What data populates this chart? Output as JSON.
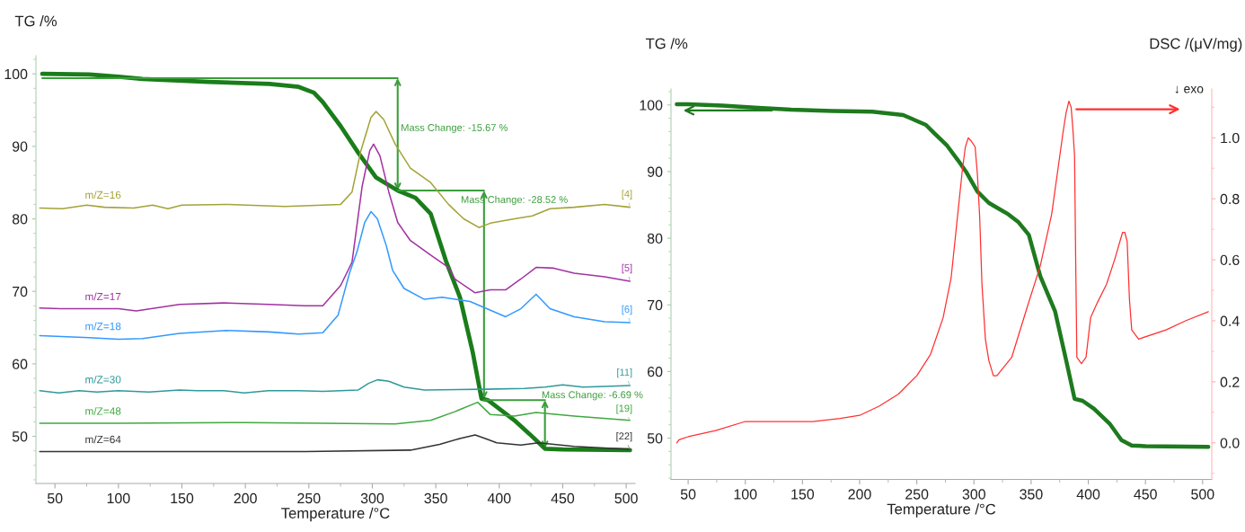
{
  "chart_data": [
    {
      "type": "line",
      "xlabel": "Temperature /°C",
      "ylabel": "TG /%",
      "xlim": [
        35,
        507
      ],
      "ylim": [
        43.5,
        102.5
      ],
      "xticks": [
        50,
        {
          "value": 75,
          "label": null
        },
        100,
        {
          "value": 125,
          "label": null
        },
        150,
        {
          "value": 175,
          "label": null
        },
        200,
        {
          "value": 225,
          "label": null
        },
        250,
        {
          "value": 275,
          "label": null
        },
        300,
        {
          "value": 325,
          "label": null
        },
        350,
        {
          "value": 375,
          "label": null
        },
        400,
        {
          "value": 425,
          "label": null
        },
        450,
        {
          "value": 475,
          "label": null
        },
        500
      ],
      "yticks": [
        {
          "value": 44,
          "label": null
        },
        {
          "value": 46,
          "label": null
        },
        {
          "value": 48,
          "label": null
        },
        50,
        {
          "value": 52,
          "label": null
        },
        {
          "value": 54,
          "label": null
        },
        {
          "value": 56,
          "label": null
        },
        {
          "value": 58,
          "label": null
        },
        60,
        {
          "value": 62,
          "label": null
        },
        {
          "value": 64,
          "label": null
        },
        {
          "value": 66,
          "label": null
        },
        {
          "value": 68,
          "label": null
        },
        70,
        {
          "value": 72,
          "label": null
        },
        {
          "value": 74,
          "label": null
        },
        {
          "value": 76,
          "label": null
        },
        {
          "value": 78,
          "label": null
        },
        80,
        {
          "value": 82,
          "label": null
        },
        {
          "value": 84,
          "label": null
        },
        {
          "value": 86,
          "label": null
        },
        {
          "value": 88,
          "label": null
        },
        90,
        {
          "value": 92,
          "label": null
        },
        {
          "value": 94,
          "label": null
        },
        {
          "value": 96,
          "label": null
        },
        {
          "value": 98,
          "label": null
        },
        100,
        {
          "value": 102,
          "label": null
        }
      ],
      "series": [
        {
          "color": "#1a7d1a",
          "x": [
            40,
            77,
            100,
            119,
            171,
            219,
            242,
            254,
            261,
            275,
            289,
            303,
            320,
            334,
            346,
            358,
            369,
            379,
            386,
            391,
            400,
            412,
            424,
            436,
            450,
            503
          ],
          "values": [
            100,
            99.9,
            99.6,
            99.3,
            98.9,
            98.6,
            98.2,
            97.4,
            96.1,
            92.8,
            89.1,
            85.7,
            83.9,
            82.9,
            80.7,
            74.2,
            69.2,
            61.7,
            55.2,
            55.0,
            53.8,
            52.2,
            50.3,
            48.3,
            48.2,
            48.1
          ]
        },
        {
          "color": "#3a9e3a",
          "x": [
            40,
            320
          ],
          "values": [
            99.4,
            99.4
          ]
        },
        {
          "color": "#3a9e3a",
          "x": [
            320,
            388
          ],
          "values": [
            83.9,
            83.9
          ]
        },
        {
          "color": "#3a9e3a",
          "x": [
            388,
            436
          ],
          "values": [
            55.0,
            55.0
          ]
        },
        {
          "name": "m/Z=16",
          "color": "#a3a33a",
          "x": [
            38,
            56,
            75,
            89,
            112,
            127,
            139,
            150,
            185,
            231,
            261,
            275,
            284,
            291,
            299,
            303,
            309,
            318,
            330,
            346,
            360,
            372,
            384,
            393,
            412,
            426,
            440,
            459,
            483,
            503
          ],
          "values": [
            81.5,
            81.4,
            81.9,
            81.6,
            81.5,
            81.9,
            81.4,
            81.9,
            82.0,
            81.7,
            81.9,
            82.0,
            83.7,
            89.4,
            94.0,
            94.8,
            93.7,
            90.3,
            87.0,
            85.0,
            82.0,
            80.0,
            78.8,
            79.4,
            80.0,
            80.4,
            81.4,
            81.6,
            82.0,
            81.6
          ]
        },
        {
          "name": "m/Z=17",
          "color": "#a232a2",
          "x": [
            38,
            54,
            100,
            114,
            148,
            183,
            219,
            247,
            261,
            275,
            284,
            292,
            298,
            301,
            306,
            313,
            320,
            330,
            346,
            360,
            365,
            381,
            393,
            405,
            417,
            429,
            443,
            459,
            483,
            503
          ],
          "values": [
            67.7,
            67.6,
            67.6,
            67.3,
            68.2,
            68.4,
            68.2,
            68.0,
            68.0,
            70.8,
            74.0,
            84.5,
            89.4,
            90.3,
            88.7,
            83.7,
            79.5,
            77.0,
            75.0,
            73.3,
            71.7,
            69.8,
            70.2,
            70.2,
            71.7,
            73.3,
            73.2,
            72.5,
            72.0,
            71.4
          ]
        },
        {
          "name": "m/Z=18",
          "color": "#3399ff",
          "x": [
            38,
            77,
            100,
            119,
            148,
            185,
            219,
            242,
            261,
            273,
            282,
            288,
            294,
            299,
            304,
            311,
            316,
            325,
            341,
            355,
            377,
            389,
            405,
            417,
            429,
            440,
            459,
            483,
            503
          ],
          "values": [
            63.9,
            63.6,
            63.4,
            63.5,
            64.2,
            64.6,
            64.4,
            64.1,
            64.3,
            66.7,
            72.5,
            75.5,
            79.5,
            81.0,
            80.0,
            76.3,
            72.9,
            70.4,
            68.9,
            69.2,
            68.6,
            67.7,
            66.5,
            67.6,
            69.6,
            67.6,
            66.5,
            65.8,
            65.7
          ]
        },
        {
          "name": "m/Z=30",
          "color": "#2f9a9a",
          "x": [
            38,
            53,
            69,
            83,
            100,
            124,
            148,
            162,
            183,
            199,
            218,
            242,
            261,
            289,
            297,
            304,
            313,
            325,
            341,
            389,
            420,
            436,
            450,
            466,
            483,
            503
          ],
          "values": [
            56.3,
            56.0,
            56.3,
            56.1,
            56.3,
            56.1,
            56.4,
            56.3,
            56.3,
            56.0,
            56.3,
            56.3,
            56.2,
            56.4,
            57.3,
            57.8,
            57.6,
            56.8,
            56.4,
            56.5,
            56.6,
            56.8,
            57.1,
            56.8,
            56.9,
            57.0
          ]
        },
        {
          "name": "m/Z=48",
          "color": "#40a840",
          "x": [
            38,
            100,
            200,
            261,
            318,
            346,
            365,
            383,
            393,
            412,
            429,
            459,
            503
          ],
          "values": [
            51.8,
            51.8,
            51.9,
            51.8,
            51.7,
            52.2,
            53.4,
            54.7,
            53.0,
            52.8,
            53.3,
            52.8,
            52.2
          ]
        },
        {
          "name": "m/Z=64",
          "color": "#333333",
          "x": [
            38,
            247,
            330,
            353,
            369,
            381,
            389,
            398,
            417,
            431,
            459,
            503
          ],
          "values": [
            47.9,
            47.9,
            48.1,
            48.9,
            49.7,
            50.2,
            49.7,
            49.1,
            48.8,
            49.1,
            48.6,
            48.2
          ]
        }
      ],
      "annotations": [
        "Mass Change: -15.67 %",
        {
          "text": "Mass Change: -28.52 %",
          "x": 388,
          "y": 55.0
        },
        {
          "text": "Mass Change: -6.69 %",
          "x": 436,
          "y": 48.3
        },
        {
          "text": "[4]",
          "x": 503,
          "y": 81.6
        },
        {
          "text": "[5]",
          "x": 503,
          "y": 71.4
        },
        {
          "text": "[6]",
          "x": 503,
          "y": 65.7
        },
        {
          "text": "[11]",
          "x": 503,
          "y": 57.0
        },
        {
          "text": "[19]",
          "x": 503,
          "y": 52.2
        },
        {
          "text": "[22]",
          "x": 503,
          "y": 48.2
        }
      ]
    },
    {
      "type": "line",
      "xlabel": "Temperature /°C",
      "ylabel": "TG /%",
      "y2label": "DSC /(μV/mg)",
      "xlim": [
        35,
        508
      ],
      "ylim": [
        43.8,
        102.4
      ],
      "y2lim": [
        -0.12,
        1.16
      ],
      "xticks": [
        50,
        {
          "value": 75,
          "label": null
        },
        100,
        {
          "value": 125,
          "label": null
        },
        150,
        {
          "value": 175,
          "label": null
        },
        200,
        {
          "value": 225,
          "label": null
        },
        250,
        {
          "value": 275,
          "label": null
        },
        300,
        {
          "value": 325,
          "label": null
        },
        350,
        {
          "value": 375,
          "label": null
        },
        400,
        {
          "value": 425,
          "label": null
        },
        450,
        {
          "value": 475,
          "label": null
        },
        500
      ],
      "yticks": [
        {
          "value": 44,
          "label": null
        },
        {
          "value": 46,
          "label": null
        },
        {
          "value": 48,
          "label": null
        },
        50,
        {
          "value": 52,
          "label": null
        },
        {
          "value": 54,
          "label": null
        },
        {
          "value": 56,
          "label": null
        },
        {
          "value": 58,
          "label": null
        },
        60,
        {
          "value": 62,
          "label": null
        },
        {
          "value": 64,
          "label": null
        },
        {
          "value": 66,
          "label": null
        },
        {
          "value": 68,
          "label": null
        },
        70,
        {
          "value": 72,
          "label": null
        },
        {
          "value": 74,
          "label": null
        },
        {
          "value": 76,
          "label": null
        },
        {
          "value": 78,
          "label": null
        },
        80,
        {
          "value": 82,
          "label": null
        },
        {
          "value": 84,
          "label": null
        },
        {
          "value": 86,
          "label": null
        },
        {
          "value": 88,
          "label": null
        },
        90,
        {
          "value": 92,
          "label": null
        },
        {
          "value": 94,
          "label": null
        },
        {
          "value": 96,
          "label": null
        },
        {
          "value": 98,
          "label": null
        },
        100,
        {
          "value": 102,
          "label": null
        }
      ],
      "y2ticks": [
        {
          "value": -0.1,
          "label": null
        },
        {
          "value": 0,
          "label": "0.0"
        },
        {
          "value": 0.1,
          "label": null
        },
        0.2,
        {
          "value": 0.3,
          "label": null
        },
        0.4,
        {
          "value": 0.5,
          "label": null
        },
        0.6,
        {
          "value": 0.7,
          "label": null
        },
        0.8,
        {
          "value": 0.9,
          "label": null
        },
        {
          "value": 1,
          "label": "1.0"
        },
        {
          "value": 1.1,
          "label": null
        }
      ],
      "series": [
        {
          "color": "#1e7a1e",
          "x": [
            40,
            50,
            80,
            108,
            140,
            176,
            211,
            238,
            258,
            265,
            276,
            286,
            293,
            303,
            313,
            320,
            330,
            339,
            348,
            358,
            371,
            381,
            388,
            395,
            405,
            419,
            429,
            438,
            450,
            505
          ],
          "values": [
            100.1,
            100.1,
            99.9,
            99.6,
            99.3,
            99.1,
            99.0,
            98.5,
            97.0,
            95.8,
            94.0,
            91.7,
            90.0,
            87.0,
            85.3,
            84.6,
            83.6,
            82.4,
            80.5,
            74.3,
            69.0,
            61.4,
            55.9,
            55.6,
            54.4,
            52.1,
            49.7,
            48.9,
            48.8,
            48.7
          ]
        },
        {
          "color": "#ff3030",
          "axis": "y2",
          "x": [
            40,
            42,
            50,
            74,
            100,
            124,
            159,
            183,
            200,
            217,
            234,
            250,
            262,
            273,
            280,
            285,
            290,
            292.5,
            295,
            297.5,
            301,
            303,
            305,
            307,
            310,
            313,
            317,
            320,
            333,
            347,
            358,
            368,
            378,
            380.5,
            383,
            385,
            386.5,
            388,
            389,
            390,
            394,
            398,
            402,
            408,
            416,
            423,
            430,
            432,
            434,
            436,
            438,
            444,
            468,
            485,
            505
          ],
          "values": [
            0.0,
            0.01,
            0.02,
            0.04,
            0.07,
            0.07,
            0.07,
            0.08,
            0.09,
            0.12,
            0.16,
            0.22,
            0.29,
            0.41,
            0.54,
            0.72,
            0.9,
            0.97,
            1.0,
            0.99,
            0.97,
            0.88,
            0.74,
            0.52,
            0.34,
            0.27,
            0.22,
            0.22,
            0.28,
            0.45,
            0.58,
            0.75,
            1.02,
            1.08,
            1.12,
            1.1,
            1.03,
            0.94,
            0.59,
            0.28,
            0.26,
            0.28,
            0.41,
            0.46,
            0.52,
            0.6,
            0.69,
            0.69,
            0.66,
            0.47,
            0.37,
            0.34,
            0.37,
            0.4,
            0.43
          ]
        }
      ],
      "annotations": [
        "↓ exo"
      ]
    }
  ]
}
